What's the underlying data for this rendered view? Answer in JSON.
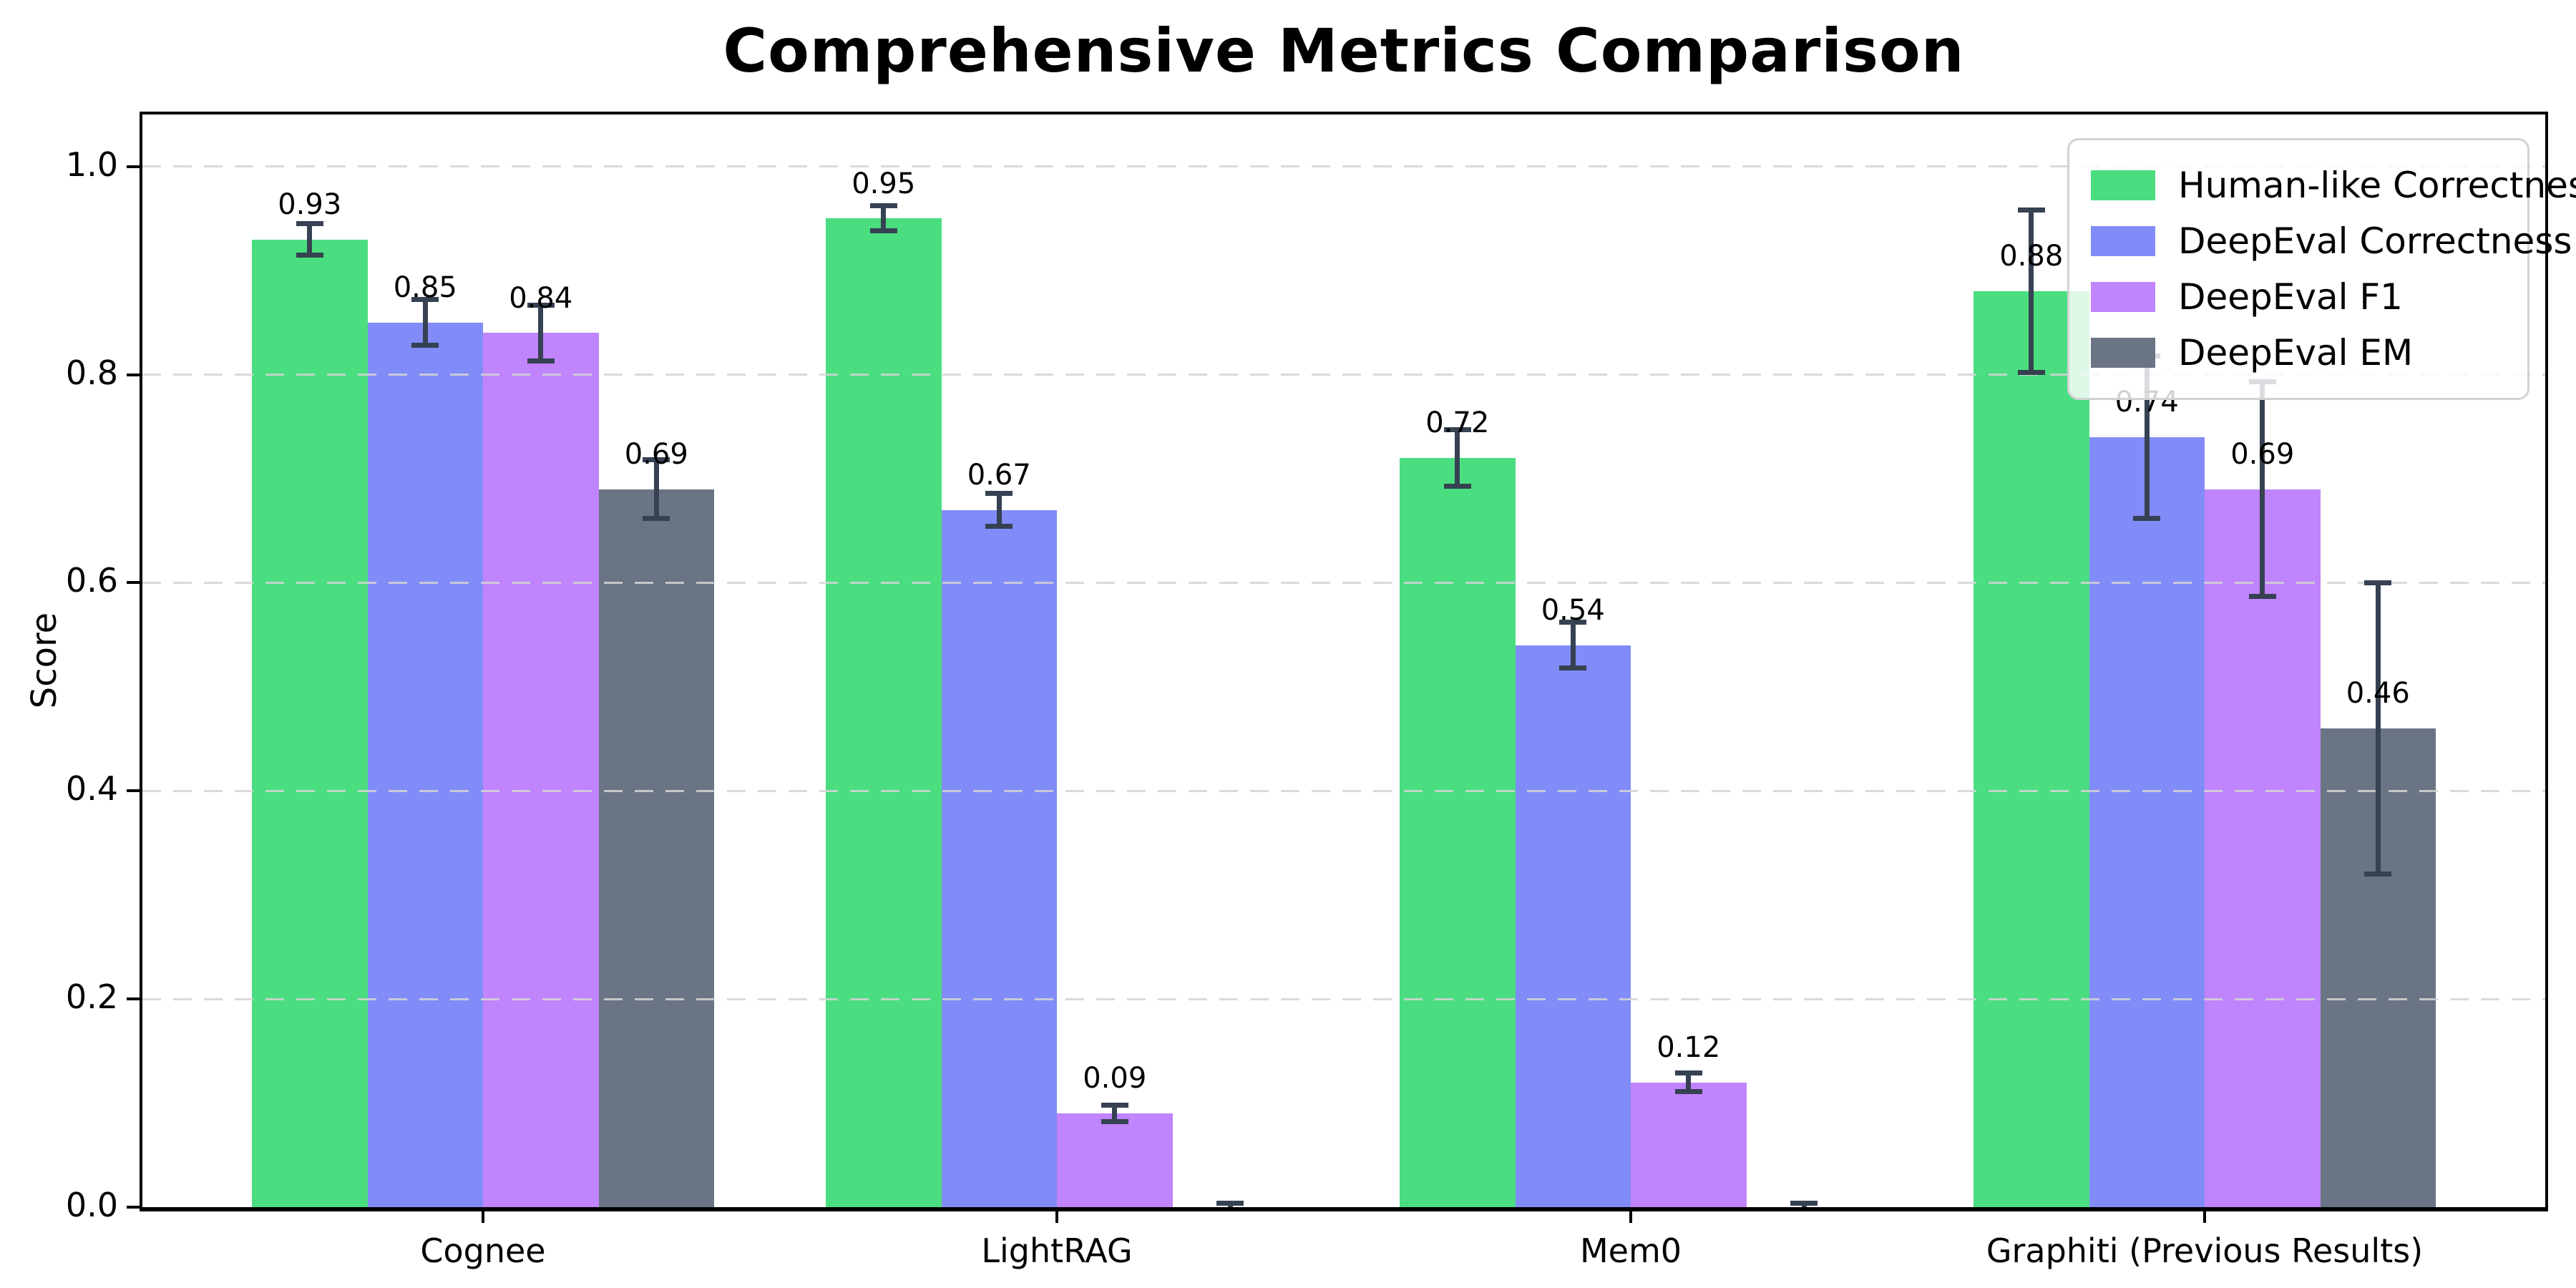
{
  "chart_data": {
    "type": "bar",
    "title": "Comprehensive Metrics Comparison",
    "ylabel": "Score",
    "xlabel": "",
    "ylim": [
      0,
      1.05
    ],
    "yticks": [
      0.0,
      0.2,
      0.4,
      0.6,
      0.8,
      1.0
    ],
    "ytick_labels": [
      "0.0",
      "0.2",
      "0.4",
      "0.6",
      "0.8",
      "1.0"
    ],
    "grid": "horizontal-dashed",
    "grid_color": "#d4d4d4",
    "legend_position": "upper-right",
    "error_bar_color": "#364152",
    "background_color": "#ffffff",
    "categories": [
      "Cognee",
      "LightRAG",
      "Mem0",
      "Graphiti (Previous Results)"
    ],
    "series": [
      {
        "name": "Human-like Correctness",
        "color": "#4ade80",
        "values": [
          0.93,
          0.95,
          0.72,
          0.88
        ],
        "errors": [
          0.015,
          0.012,
          0.027,
          0.078
        ],
        "labels": [
          "0.93",
          "0.95",
          "0.72",
          "0.88"
        ]
      },
      {
        "name": "DeepEval Correctness",
        "color": "#818cf8",
        "values": [
          0.85,
          0.67,
          0.54,
          0.74
        ],
        "errors": [
          0.022,
          0.016,
          0.022,
          0.078
        ],
        "labels": [
          "0.85",
          "0.67",
          "0.54",
          "0.74"
        ]
      },
      {
        "name": "DeepEval F1",
        "color": "#c084fc",
        "values": [
          0.84,
          0.09,
          0.12,
          0.69
        ],
        "errors": [
          0.027,
          0.008,
          0.009,
          0.103
        ],
        "labels": [
          "0.84",
          "0.09",
          "0.12",
          "0.69"
        ]
      },
      {
        "name": "DeepEval EM",
        "color": "#6b7484",
        "values": [
          0.69,
          0.0,
          0.0,
          0.46
        ],
        "errors": [
          0.028,
          0.004,
          0.004,
          0.14
        ],
        "labels": [
          "0.69",
          "",
          "",
          "0.46"
        ]
      }
    ]
  }
}
